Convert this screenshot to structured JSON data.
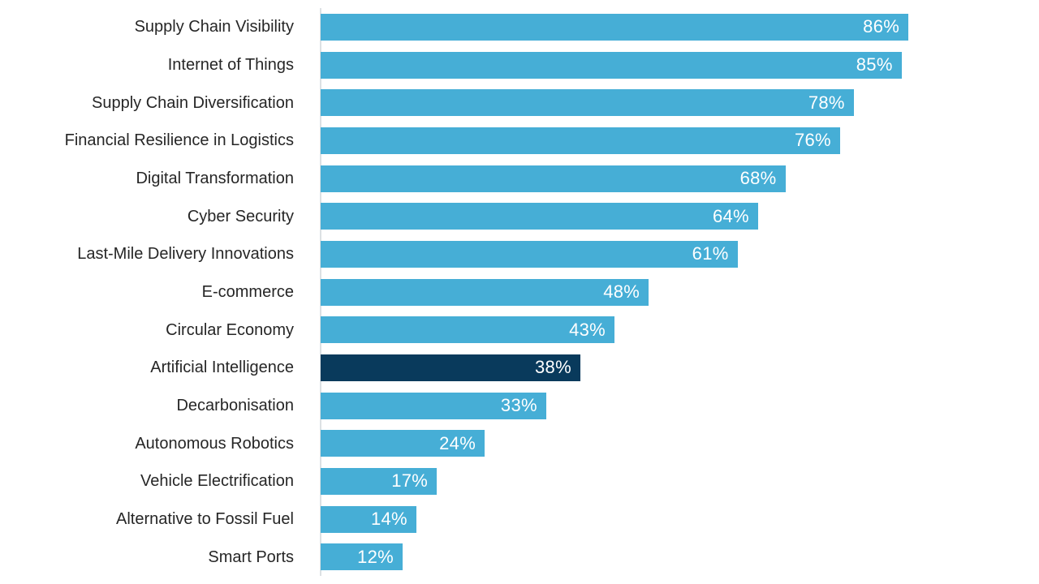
{
  "chart_data": {
    "type": "bar",
    "orientation": "horizontal",
    "title": "",
    "xlabel": "",
    "ylabel": "",
    "grid": false,
    "legend": false,
    "xlim": [
      0,
      105
    ],
    "categories": [
      "Supply Chain Visibility",
      "Internet of Things",
      "Supply Chain Diversification",
      "Financial Resilience in Logistics",
      "Digital Transformation",
      "Cyber Security",
      "Last-Mile Delivery Innovations",
      "E-commerce",
      "Circular Economy",
      "Artificial Intelligence",
      "Decarbonisation",
      "Autonomous Robotics",
      "Vehicle Electrification",
      "Alternative to Fossil Fuel",
      "Smart Ports"
    ],
    "values": [
      86,
      85,
      78,
      76,
      68,
      64,
      61,
      48,
      43,
      38,
      33,
      24,
      17,
      14,
      12
    ],
    "value_labels": [
      "86%",
      "85%",
      "78%",
      "76%",
      "68%",
      "64%",
      "61%",
      "48%",
      "43%",
      "38%",
      "33%",
      "24%",
      "17%",
      "14%",
      "12%"
    ],
    "highlight_index": 9,
    "colors": {
      "bar": "#46AED6",
      "highlight_bar": "#093A5C",
      "category_label": "#262626",
      "value_label": "#FFFFFF",
      "axis_line": "#DCE1E4",
      "background": "#FFFFFF"
    }
  }
}
